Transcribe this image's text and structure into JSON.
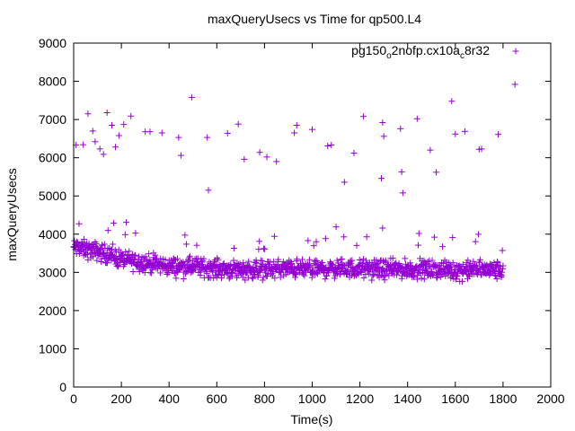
{
  "chart_data": {
    "type": "scatter",
    "title": "maxQueryUsecs vs Time for qp500.L4",
    "xlabel": "Time(s)",
    "ylabel": "maxQueryUsecs",
    "xlim": [
      0,
      2000
    ],
    "ylim": [
      0,
      9000
    ],
    "x_ticks": [
      "0",
      "200",
      "400",
      "600",
      "800",
      "1000",
      "1200",
      "1400",
      "1600",
      "1800",
      "2000"
    ],
    "y_ticks": [
      "0",
      "1000",
      "2000",
      "3000",
      "4000",
      "5000",
      "6000",
      "7000",
      "8000",
      "9000"
    ],
    "grid": false,
    "legend_position": "top-right",
    "color": "#9400d3",
    "marker": "plus",
    "series": [
      {
        "name": "pg150",
        "name_sub": "o",
        "name_mid": "2nofp.cx10a",
        "name_sub2": "c",
        "name_end": "8r32",
        "outliers": [
          [
            10,
            6330
          ],
          [
            40,
            6340
          ],
          [
            60,
            7150
          ],
          [
            80,
            6700
          ],
          [
            90,
            6420
          ],
          [
            110,
            6230
          ],
          [
            125,
            6090
          ],
          [
            140,
            7180
          ],
          [
            160,
            6850
          ],
          [
            175,
            6280
          ],
          [
            190,
            6580
          ],
          [
            210,
            6870
          ],
          [
            240,
            7090
          ],
          [
            300,
            6680
          ],
          [
            320,
            6680
          ],
          [
            370,
            6650
          ],
          [
            440,
            6530
          ],
          [
            450,
            6060
          ],
          [
            495,
            7580
          ],
          [
            560,
            6530
          ],
          [
            565,
            5150
          ],
          [
            645,
            6640
          ],
          [
            690,
            6880
          ],
          [
            715,
            5960
          ],
          [
            780,
            6140
          ],
          [
            810,
            6020
          ],
          [
            850,
            5900
          ],
          [
            925,
            6650
          ],
          [
            935,
            6850
          ],
          [
            1000,
            6740
          ],
          [
            1065,
            6310
          ],
          [
            1080,
            6330
          ],
          [
            1100,
            4190
          ],
          [
            1135,
            5360
          ],
          [
            1175,
            6120
          ],
          [
            1215,
            7080
          ],
          [
            1295,
            6920
          ],
          [
            1300,
            6560
          ],
          [
            1290,
            5460
          ],
          [
            1295,
            4160
          ],
          [
            1370,
            6760
          ],
          [
            1375,
            5630
          ],
          [
            1380,
            5080
          ],
          [
            1440,
            7020
          ],
          [
            1495,
            6200
          ],
          [
            1520,
            5620
          ],
          [
            1585,
            7480
          ],
          [
            1600,
            6620
          ],
          [
            1640,
            6690
          ],
          [
            1700,
            6220
          ],
          [
            1710,
            6230
          ],
          [
            1780,
            6610
          ],
          [
            1850,
            7920
          ]
        ],
        "dense_band": [
          [
            0,
            3650
          ],
          [
            100,
            3550
          ],
          [
            200,
            3350
          ],
          [
            300,
            3250
          ],
          [
            400,
            3150
          ],
          [
            500,
            3150
          ],
          [
            600,
            3100
          ],
          [
            700,
            3080
          ],
          [
            800,
            3080
          ],
          [
            900,
            3100
          ],
          [
            1000,
            3080
          ],
          [
            1100,
            3100
          ],
          [
            1200,
            3100
          ],
          [
            1300,
            3080
          ],
          [
            1400,
            3080
          ],
          [
            1500,
            3080
          ],
          [
            1600,
            3050
          ],
          [
            1700,
            3080
          ],
          [
            1800,
            3050
          ]
        ],
        "dense_band_spread": 350,
        "dense_band_x_range": [
          0,
          1800
        ]
      }
    ]
  }
}
